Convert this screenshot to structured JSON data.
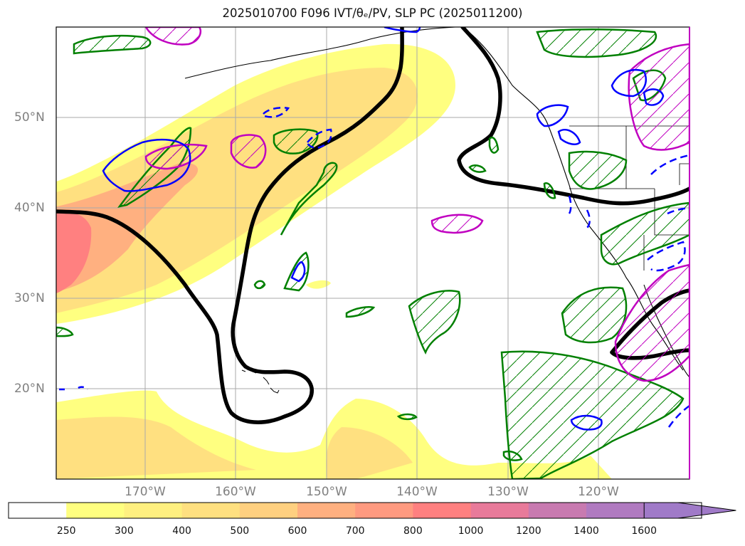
{
  "title": "2025010700 F096 IVT/θₑ/PV, SLP PC (2025011200)",
  "lat_labels": [
    "50°N",
    "40°N",
    "30°N",
    "20°N"
  ],
  "lon_labels": [
    "170°W",
    "160°W",
    "150°W",
    "140°W",
    "130°W",
    "120°W"
  ],
  "colorbar": {
    "ticks": [
      "250",
      "300",
      "400",
      "500",
      "600",
      "700",
      "800",
      "1000",
      "1200",
      "1400",
      "1600"
    ],
    "colors": [
      "#ffffff",
      "#ffff80",
      "#fff080",
      "#ffe080",
      "#ffd080",
      "#ffb080",
      "#ff9a80",
      "#ff8080",
      "#e87a9a",
      "#c87ab0",
      "#b07ac0",
      "#a07ac8"
    ],
    "extend": "max"
  },
  "colors": {
    "ivt_low": "#ffff80",
    "ivt_mid": "#ffd680",
    "ivt_high": "#ff8080",
    "slp_contour": "#000000",
    "pv_green": "#008000",
    "theta_magenta": "#c000c0",
    "blue_contour": "#0000ff"
  }
}
